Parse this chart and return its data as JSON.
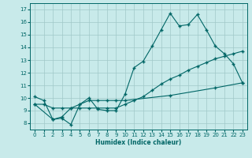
{
  "xlabel": "Humidex (Indice chaleur)",
  "bg_color": "#c8eaea",
  "grid_color": "#a0c8c8",
  "line_color": "#006666",
  "xlim": [
    -0.5,
    23.5
  ],
  "ylim": [
    7.5,
    17.5
  ],
  "yticks": [
    8,
    9,
    10,
    11,
    12,
    13,
    14,
    15,
    16,
    17
  ],
  "xticks": [
    0,
    1,
    2,
    3,
    4,
    5,
    6,
    7,
    8,
    9,
    10,
    11,
    12,
    13,
    14,
    15,
    16,
    17,
    18,
    19,
    20,
    21,
    22,
    23
  ],
  "line1_x": [
    0,
    1,
    2,
    3,
    4,
    5,
    6,
    7,
    8,
    9,
    10,
    11,
    12,
    13,
    14,
    15,
    16,
    17,
    18,
    19,
    20,
    21,
    22,
    23
  ],
  "line1_y": [
    10.1,
    9.8,
    8.3,
    8.4,
    7.9,
    9.5,
    10.0,
    9.1,
    9.0,
    9.0,
    10.3,
    12.4,
    12.9,
    14.1,
    15.4,
    16.7,
    15.7,
    15.8,
    16.6,
    15.4,
    14.1,
    13.5,
    12.7,
    11.2
  ],
  "line2_x": [
    0,
    1,
    2,
    3,
    4,
    5,
    6,
    7,
    8,
    9,
    10,
    11,
    12,
    13,
    14,
    15,
    16,
    17,
    18,
    19,
    20,
    21,
    22,
    23
  ],
  "line2_y": [
    9.5,
    9.5,
    9.2,
    9.2,
    9.2,
    9.2,
    9.2,
    9.2,
    9.2,
    9.2,
    9.5,
    9.8,
    10.1,
    10.6,
    11.1,
    11.5,
    11.8,
    12.2,
    12.5,
    12.8,
    13.1,
    13.3,
    13.5,
    13.7
  ],
  "line3_x": [
    0,
    2,
    3,
    4,
    5,
    6,
    7,
    8,
    9,
    10,
    15,
    20,
    23
  ],
  "line3_y": [
    9.5,
    8.3,
    8.5,
    9.2,
    9.5,
    9.8,
    9.8,
    9.8,
    9.8,
    9.8,
    10.2,
    10.8,
    11.2
  ]
}
